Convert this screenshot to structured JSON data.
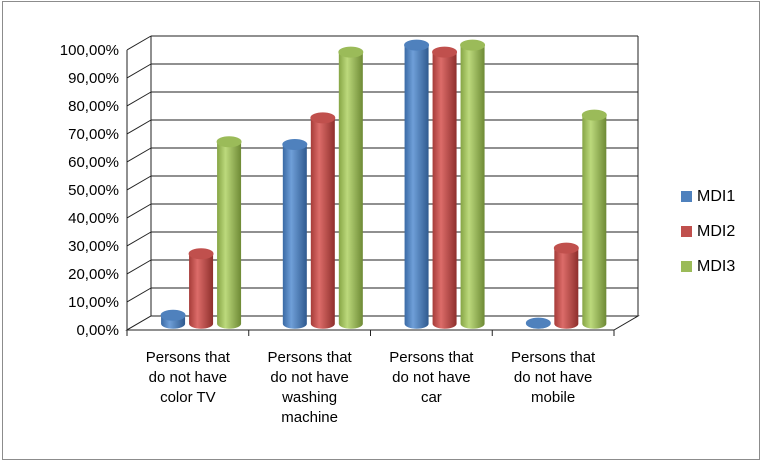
{
  "chart_data": {
    "type": "bar",
    "title": "",
    "xlabel": "",
    "ylabel": "",
    "categories": [
      [
        "Persons that",
        "do not have",
        "color TV"
      ],
      [
        "Persons that",
        "do not have",
        "washing",
        "machine"
      ],
      [
        "Persons that",
        "do not have",
        "car"
      ],
      [
        "Persons that",
        "do not have",
        "mobile"
      ]
    ],
    "series": [
      {
        "name": "MDI1",
        "color": "#4f81bd",
        "values": [
          3.0,
          64.0,
          99.5,
          0.2
        ]
      },
      {
        "name": "MDI2",
        "color": "#c0504d",
        "values": [
          25.0,
          73.5,
          97.0,
          27.0
        ]
      },
      {
        "name": "MDI3",
        "color": "#9bbb59",
        "values": [
          65.0,
          97.0,
          99.5,
          74.5
        ]
      }
    ],
    "ylim": [
      0,
      100
    ],
    "yticks": [
      "0,00%",
      "10,00%",
      "20,00%",
      "30,00%",
      "40,00%",
      "50,00%",
      "60,00%",
      "70,00%",
      "80,00%",
      "90,00%",
      "100,00%"
    ],
    "grid": true,
    "legend_position": "right",
    "style": "3d-clustered-cylinder"
  }
}
